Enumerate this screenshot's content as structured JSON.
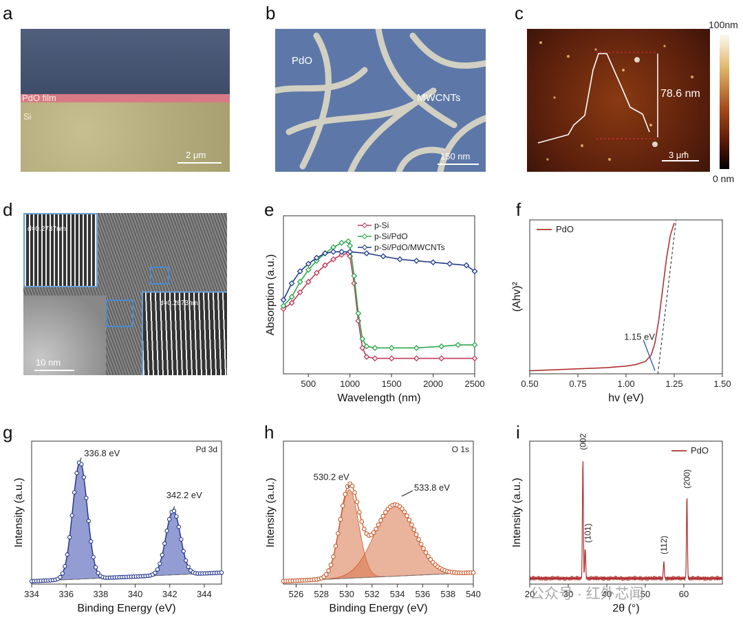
{
  "panels": {
    "a": {
      "letter": "a",
      "pdo_label": "PdO film",
      "si_label": "Si",
      "scale": "2 μm"
    },
    "b": {
      "letter": "b",
      "pdo_label": "PdO",
      "mwcnt_label": "MWCNTs",
      "scale": "150 nm"
    },
    "c": {
      "letter": "c",
      "height_label": "78.6 nm",
      "scale": "3 μm",
      "cbar_max": "100nm",
      "cbar_min": "0 nm"
    },
    "d": {
      "letter": "d",
      "d1": "d=0.2737nm",
      "d2": "d=0.2673nm",
      "scale": "10 nm"
    },
    "e": {
      "letter": "e"
    },
    "f": {
      "letter": "f"
    },
    "g": {
      "letter": "g"
    },
    "h": {
      "letter": "h"
    },
    "i": {
      "letter": "i"
    }
  },
  "watermark": "公众号 · 红外芯闻",
  "chart_data": [
    {
      "id": "e",
      "type": "line",
      "xlabel": "Wavelength (nm)",
      "ylabel": "Absorption (a.u.)",
      "xlim": [
        200,
        2500
      ],
      "ylim": [
        0,
        1
      ],
      "xticks": [
        500,
        1000,
        1500,
        2000,
        2500
      ],
      "legend_position": "top-right",
      "series": [
        {
          "name": "p-Si",
          "color": "#c0395a",
          "x": [
            200,
            300,
            400,
            500,
            600,
            700,
            800,
            900,
            980,
            1000,
            1050,
            1100,
            1150,
            1200,
            1300,
            1500,
            1800,
            2100,
            2500
          ],
          "y": [
            0.38,
            0.42,
            0.49,
            0.56,
            0.62,
            0.67,
            0.71,
            0.74,
            0.75,
            0.73,
            0.55,
            0.3,
            0.12,
            0.06,
            0.05,
            0.05,
            0.05,
            0.05,
            0.05
          ]
        },
        {
          "name": "p-Si/PdO",
          "color": "#2aa84a",
          "x": [
            200,
            300,
            400,
            500,
            600,
            700,
            800,
            900,
            980,
            1000,
            1050,
            1100,
            1150,
            1200,
            1300,
            1500,
            1800,
            2100,
            2300,
            2500
          ],
          "y": [
            0.4,
            0.46,
            0.56,
            0.64,
            0.7,
            0.75,
            0.79,
            0.82,
            0.83,
            0.8,
            0.6,
            0.35,
            0.18,
            0.13,
            0.12,
            0.12,
            0.12,
            0.13,
            0.14,
            0.14
          ]
        },
        {
          "name": "p-Si/PdO/MWCNTs",
          "color": "#1e3a8a",
          "x": [
            200,
            300,
            400,
            500,
            600,
            700,
            800,
            900,
            1000,
            1200,
            1400,
            1600,
            1800,
            2000,
            2200,
            2400,
            2500
          ],
          "y": [
            0.44,
            0.55,
            0.63,
            0.68,
            0.72,
            0.75,
            0.76,
            0.76,
            0.76,
            0.75,
            0.73,
            0.71,
            0.7,
            0.69,
            0.68,
            0.67,
            0.63
          ]
        }
      ]
    },
    {
      "id": "f",
      "type": "line",
      "xlabel": "hv (eV)",
      "ylabel": "(Ahv)²",
      "xlim": [
        0.5,
        1.5
      ],
      "ylim": [
        0,
        1
      ],
      "xticks": [
        0.5,
        0.75,
        1.0,
        1.25,
        1.5
      ],
      "xtick_labels": [
        "0.50",
        "0.75",
        "1.00",
        "1.25",
        "1.50"
      ],
      "legend_position": "top-left",
      "annotation": "1.15 eV",
      "series": [
        {
          "name": "PdO",
          "color": "#b03030",
          "x": [
            0.5,
            0.6,
            0.7,
            0.8,
            0.9,
            1.0,
            1.05,
            1.1,
            1.13,
            1.15,
            1.17,
            1.19,
            1.21,
            1.23,
            1.25,
            1.27,
            1.29
          ],
          "y": [
            0.02,
            0.025,
            0.03,
            0.035,
            0.04,
            0.05,
            0.06,
            0.08,
            0.12,
            0.2,
            0.35,
            0.55,
            0.75,
            0.9,
            0.98,
            1.02,
            1.04
          ]
        }
      ]
    },
    {
      "id": "g",
      "type": "line",
      "xlabel": "Binding Energy (eV)",
      "ylabel": "Intensity (a.u.)",
      "xlim": [
        334,
        345
      ],
      "ylim": [
        0,
        1
      ],
      "xticks": [
        334,
        336,
        338,
        340,
        342,
        344
      ],
      "tag": "Pd 3d",
      "annotations": [
        "336.8 eV",
        "342.2 eV"
      ],
      "series": [
        {
          "name": "",
          "color": "#1e2f8a",
          "peaks": [
            {
              "center": 336.8,
              "height": 0.82,
              "width": 0.42
            },
            {
              "center": 342.2,
              "height": 0.45,
              "width": 0.42
            }
          ]
        }
      ]
    },
    {
      "id": "h",
      "type": "line",
      "xlabel": "Binding Energy (eV)",
      "ylabel": "Intensity (a.u.)",
      "xlim": [
        525,
        540
      ],
      "ylim": [
        0,
        1
      ],
      "xticks": [
        526,
        528,
        530,
        532,
        534,
        536,
        538,
        540
      ],
      "tag": "O 1s",
      "annotations": [
        "530.2 eV",
        "533.8 eV"
      ],
      "series": [
        {
          "name": "",
          "color": "#c95a2c",
          "peaks": [
            {
              "center": 530.2,
              "height": 0.62,
              "width": 0.75
            },
            {
              "center": 533.8,
              "height": 0.5,
              "width": 1.6
            }
          ]
        }
      ]
    },
    {
      "id": "i",
      "type": "line",
      "xlabel": "2θ (°)",
      "ylabel": "Intensity (a.u.)",
      "xlim": [
        20,
        70
      ],
      "ylim": [
        0,
        1
      ],
      "xticks": [
        20,
        30,
        40,
        50,
        60
      ],
      "legend_position": "top-right",
      "peak_labels": [
        {
          "text": "(002)",
          "x": 33.8
        },
        {
          "text": "(101)",
          "x": 34.4
        },
        {
          "text": "(112)",
          "x": 54.8
        },
        {
          "text": "(200)",
          "x": 60.8
        }
      ],
      "series": [
        {
          "name": "PdO",
          "color": "#b03030",
          "peaks": [
            {
              "center": 33.8,
              "height": 0.85
            },
            {
              "center": 34.4,
              "height": 0.22
            },
            {
              "center": 54.8,
              "height": 0.12
            },
            {
              "center": 60.8,
              "height": 0.58
            }
          ]
        }
      ]
    }
  ]
}
